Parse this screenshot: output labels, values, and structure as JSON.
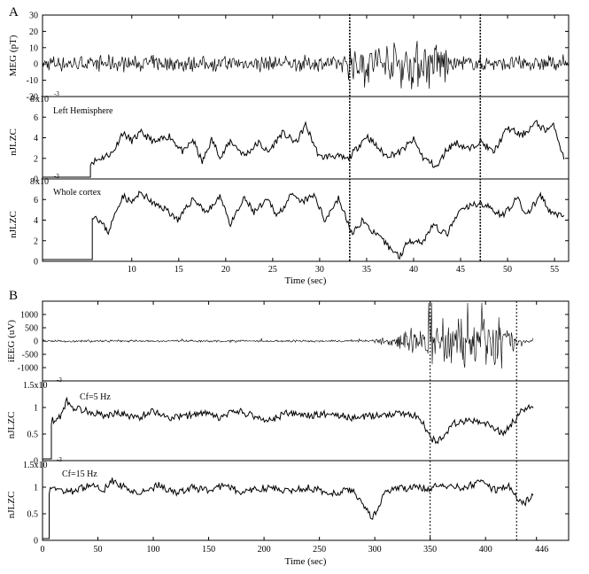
{
  "panels": {
    "A": {
      "label": "A"
    },
    "B": {
      "label": "B"
    }
  },
  "chart_data": [
    {
      "type": "line",
      "panel": "A",
      "subplot": "meg",
      "ylabel": "MEG (pT)",
      "ylim": [
        -20,
        30
      ],
      "yticks": [
        "30",
        "20",
        "10",
        "0",
        "-10",
        "-20"
      ],
      "xlim": [
        0.5,
        56.5
      ],
      "series": [
        {
          "segments": [
            {
              "x_range": [
                0.5,
                33
              ],
              "amplitude": 6
            },
            {
              "x_range": [
                33,
                43.7
              ],
              "amplitude": 18
            },
            {
              "x_range": [
                43.7,
                56.5
              ],
              "amplitude": 6
            }
          ]
        }
      ],
      "markers": [
        33.2,
        47.1
      ]
    },
    {
      "type": "line",
      "panel": "A",
      "subplot": "left-hemisphere",
      "annotation": "Left Hemisphere",
      "ylabel": "nJLZC",
      "ylim": [
        0,
        0.008
      ],
      "yticks": [
        "8",
        "6",
        "4",
        "2",
        "0"
      ],
      "scale_label": "x10",
      "scale_exponent": "-3",
      "series": [
        {
          "x": [
            0.5,
            5.6,
            5.6,
            6.2,
            8,
            9,
            10,
            11,
            12.5,
            14,
            15.5,
            16.5,
            17.5,
            18.5,
            19.5,
            20.5,
            22,
            23.5,
            24.5,
            26,
            27.5,
            28.5,
            30,
            31.5,
            33,
            35,
            37,
            38.5,
            40,
            41,
            42.5,
            43.5,
            44.5,
            46,
            47,
            48.5,
            50,
            51.5,
            53,
            54,
            55,
            56
          ],
          "y": [
            0,
            0,
            0.0015,
            0.0017,
            0.0025,
            0.0045,
            0.0037,
            0.0045,
            0.0035,
            0.0042,
            0.0025,
            0.0038,
            0.0015,
            0.0038,
            0.002,
            0.0037,
            0.0022,
            0.0035,
            0.0025,
            0.0045,
            0.0035,
            0.0053,
            0.002,
            0.0022,
            0.0018,
            0.0042,
            0.0022,
            0.0025,
            0.0038,
            0.002,
            0.001,
            0.0028,
            0.0035,
            0.0028,
            0.0037,
            0.0025,
            0.005,
            0.0042,
            0.0055,
            0.0048,
            0.0052,
            0.0018
          ]
        }
      ]
    },
    {
      "type": "line",
      "panel": "A",
      "subplot": "whole-cortex",
      "annotation": "Whole cortex",
      "ylabel": "nJLZC",
      "xlabel": "Time (sec)",
      "ylim": [
        0,
        0.008
      ],
      "yticks": [
        "8",
        "6",
        "4",
        "2",
        "0"
      ],
      "scale_label": "x10",
      "scale_exponent": "-3",
      "xticks": [
        10,
        15,
        20,
        25,
        30,
        35,
        40,
        45,
        50,
        55
      ],
      "series": [
        {
          "x": [
            0.5,
            5.8,
            5.8,
            6.3,
            7.5,
            9,
            10,
            11,
            12.5,
            13.5,
            15,
            16.5,
            18,
            19.5,
            20.5,
            22,
            23,
            24.5,
            25.5,
            27,
            28,
            29.5,
            30.5,
            32,
            33.5,
            34.5,
            36,
            38.5,
            39.5,
            41,
            42,
            43.5,
            45,
            47,
            49.5,
            51,
            52,
            53.5,
            54.5,
            56
          ],
          "y": [
            0,
            0,
            0.0045,
            0.0043,
            0.0028,
            0.0065,
            0.0058,
            0.0068,
            0.0055,
            0.0052,
            0.004,
            0.0062,
            0.0048,
            0.0064,
            0.0035,
            0.0062,
            0.0048,
            0.006,
            0.0045,
            0.0065,
            0.0058,
            0.0065,
            0.004,
            0.0062,
            0.0025,
            0.004,
            0.0025,
            0.0003,
            0.002,
            0.0018,
            0.0035,
            0.0025,
            0.005,
            0.0058,
            0.0045,
            0.0062,
            0.0045,
            0.0065,
            0.0048,
            0.0045
          ]
        }
      ]
    },
    {
      "type": "line",
      "panel": "B",
      "subplot": "ieeg",
      "ylabel": "iEEG (uV)",
      "ylim": [
        -1500,
        1500
      ],
      "yticks": [
        "1000",
        "500",
        "0",
        "-500",
        "-1000"
      ],
      "xlim": [
        0,
        475
      ],
      "series": [
        {
          "segments": [
            {
              "x_range": [
                0,
                300
              ],
              "amplitude": 55
            },
            {
              "x_range": [
                300,
                320
              ],
              "amplitude": 250
            },
            {
              "x_range": [
                320,
                348
              ],
              "amplitude": 550
            },
            {
              "x_range": [
                348,
                415
              ],
              "amplitude": 1200
            },
            {
              "x_range": [
                415,
                430
              ],
              "amplitude": 600
            },
            {
              "x_range": [
                430,
                443
              ],
              "amplitude": 120
            }
          ]
        }
      ],
      "markers": [
        350,
        428
      ]
    },
    {
      "type": "line",
      "panel": "B",
      "subplot": "cf5",
      "annotation": "Cf=5 Hz",
      "ylabel": "nJLZC",
      "ylim": [
        0,
        0.0015
      ],
      "yticks": [
        "1",
        "0.5",
        "0"
      ],
      "scale_label": "1.5x10",
      "scale_exponent": "-3",
      "series": [
        {
          "x": [
            0,
            8,
            8,
            15,
            22,
            28,
            40,
            55,
            70,
            85,
            100,
            115,
            130,
            145,
            160,
            175,
            190,
            205,
            220,
            240,
            260,
            280,
            300,
            320,
            340,
            350,
            356,
            362,
            372,
            385,
            400,
            415,
            428,
            433,
            438,
            443
          ],
          "y": [
            0,
            0,
            0.00075,
            0.0008,
            0.00115,
            0.001,
            0.00095,
            0.00085,
            0.0009,
            0.0008,
            0.00095,
            0.0008,
            0.00085,
            0.0009,
            0.0008,
            0.00095,
            0.00085,
            0.00075,
            0.0009,
            0.00085,
            0.0009,
            0.0008,
            0.00085,
            0.0009,
            0.00085,
            0.0004,
            0.00035,
            0.00045,
            0.0007,
            0.00075,
            0.0007,
            0.0005,
            0.0008,
            0.00095,
            0.001,
            0.001
          ]
        }
      ]
    },
    {
      "type": "line",
      "panel": "B",
      "subplot": "cf15",
      "annotation": "Cf=15 Hz",
      "ylabel": "nJLZC",
      "xlabel": "Time (sec)",
      "ylim": [
        0,
        0.0015
      ],
      "yticks": [
        "1.5x10",
        "1",
        "0.5",
        "0"
      ],
      "scale_exponent": "-3",
      "xticks": [
        "0",
        "50",
        "100",
        "150",
        "200",
        "250",
        "300",
        "350",
        "400",
        "446"
      ],
      "series": [
        {
          "x": [
            0,
            6,
            6,
            12,
            20,
            30,
            45,
            55,
            62,
            75,
            90,
            105,
            120,
            135,
            150,
            165,
            180,
            200,
            220,
            240,
            260,
            280,
            298,
            310,
            330,
            350,
            365,
            380,
            395,
            410,
            420,
            428,
            435,
            443
          ],
          "y": [
            0,
            0,
            0.00095,
            0.001,
            0.0009,
            0.00095,
            0.00105,
            0.00095,
            0.00115,
            0.001,
            0.0009,
            0.00105,
            0.0009,
            0.001,
            0.00095,
            0.00105,
            0.0009,
            0.001,
            0.00095,
            0.001,
            0.0009,
            0.00095,
            0.0004,
            0.00095,
            0.001,
            0.001,
            0.00105,
            0.001,
            0.0011,
            0.00095,
            0.00105,
            0.0008,
            0.0007,
            0.00085
          ]
        }
      ]
    }
  ]
}
